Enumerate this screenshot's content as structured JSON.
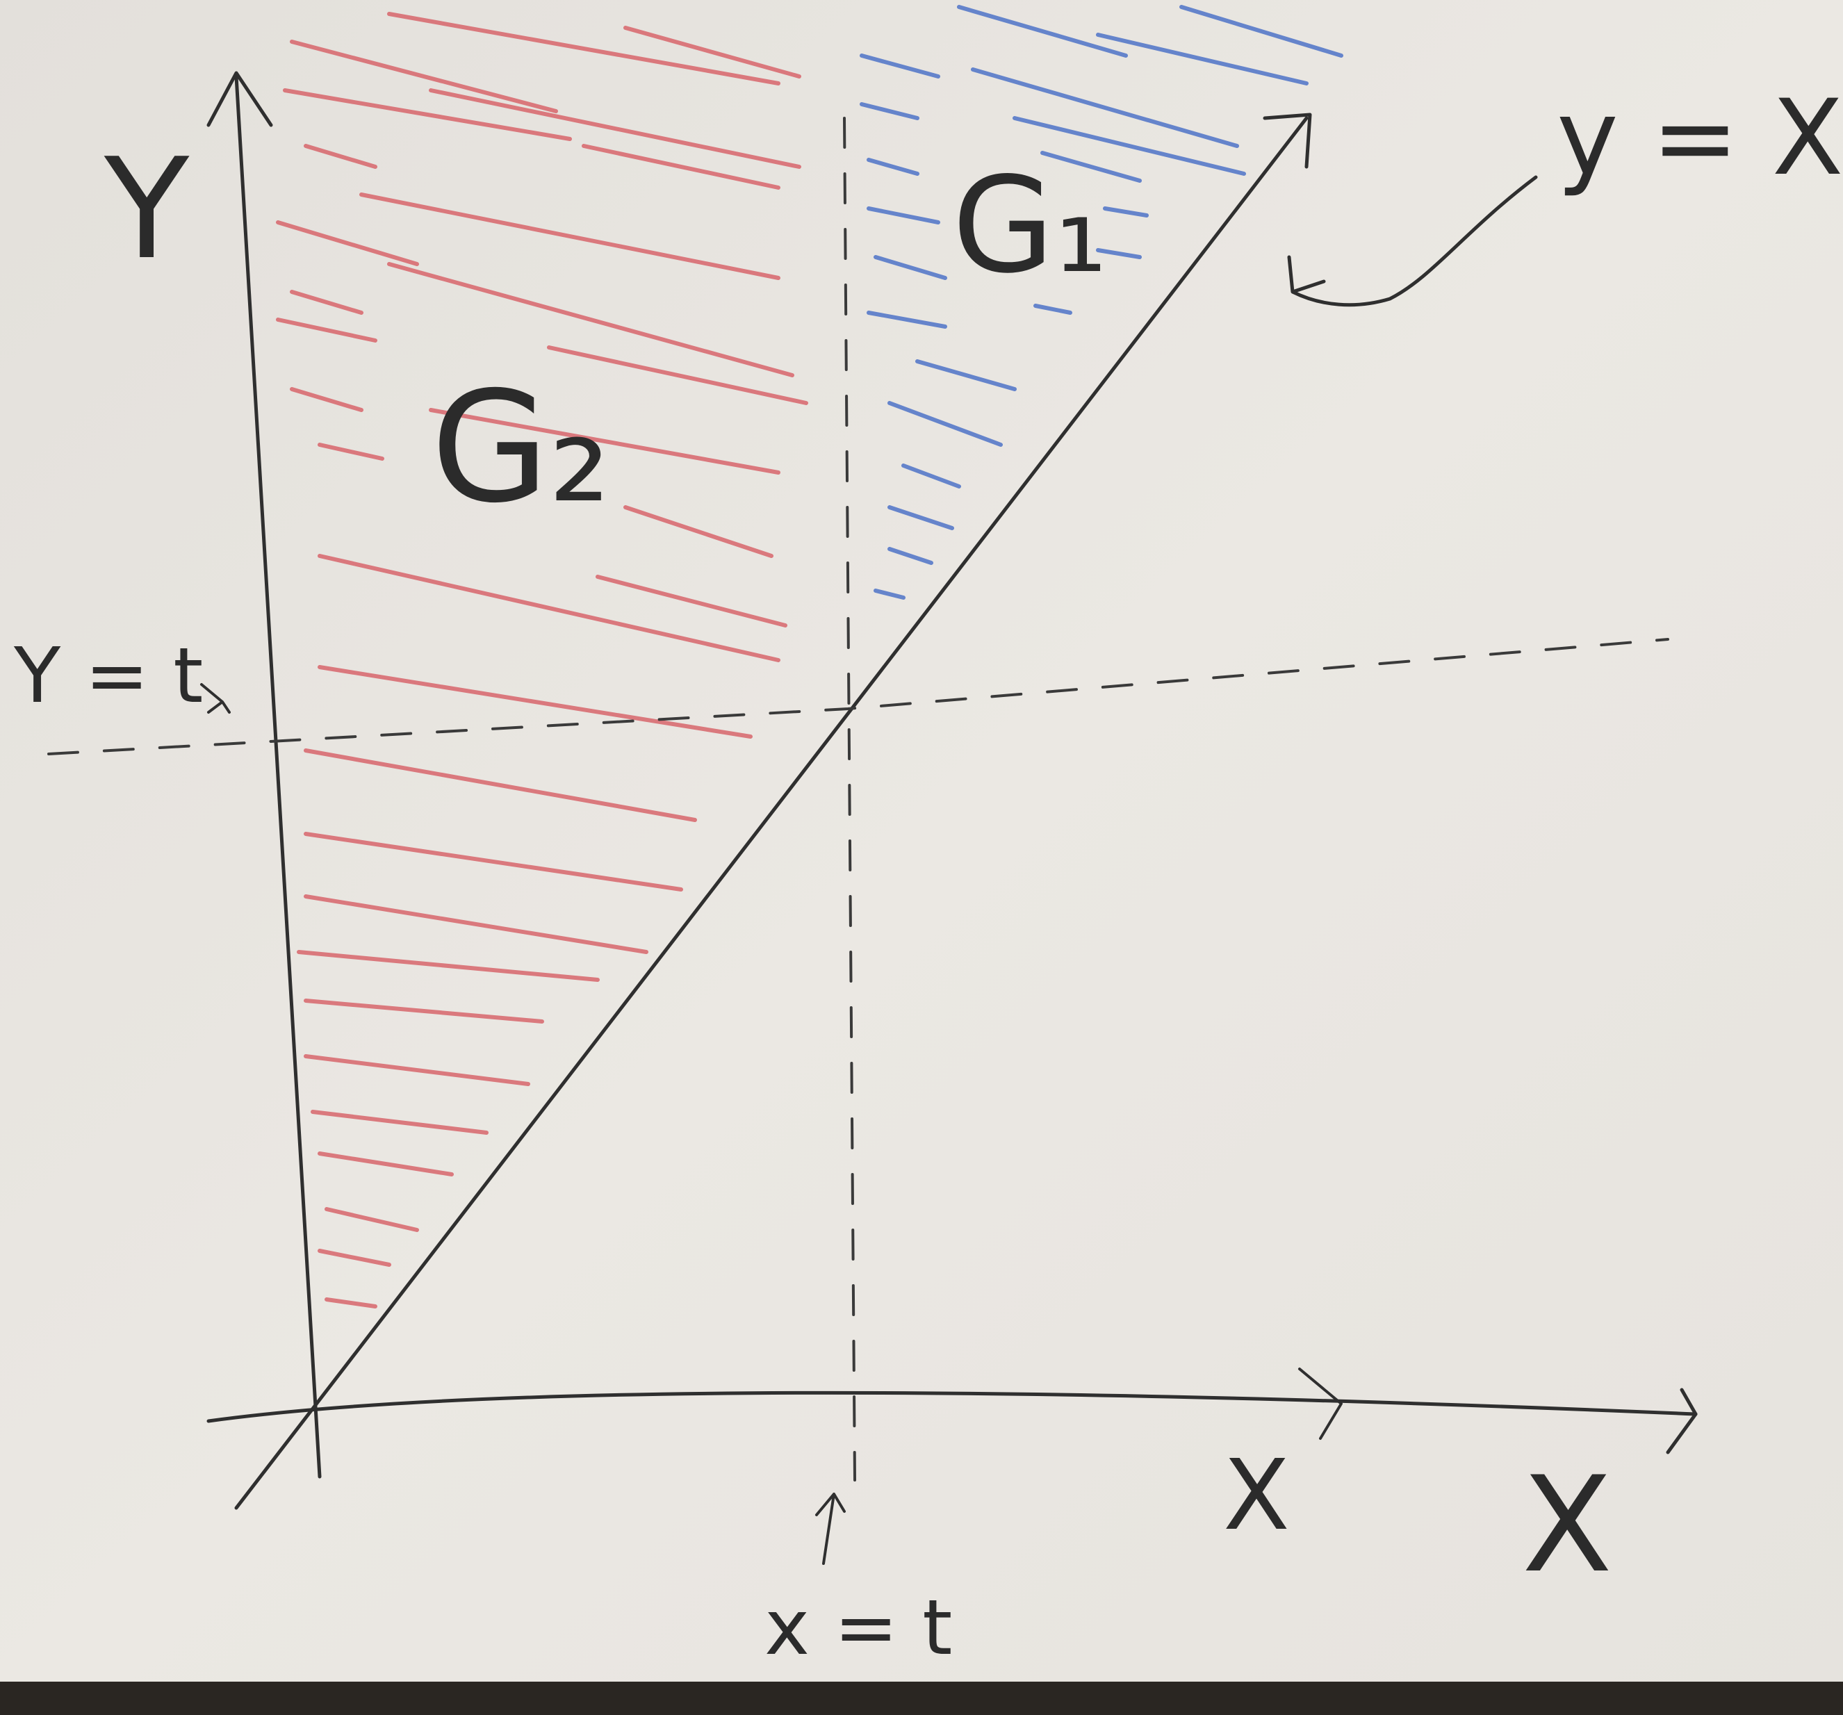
{
  "labels": {
    "y_axis": "Y",
    "x_axis": "X",
    "x_axis_small": "X",
    "line": "y = X",
    "y_eq_t": "Y = t",
    "x_eq_t": "x = t",
    "region_blue": "G₁",
    "region_red": "G₂"
  },
  "colors": {
    "paper": "#e9e6e1",
    "pencil": "#2f2f2f",
    "region_red": "#d8666c",
    "region_blue": "#4f74c8"
  }
}
